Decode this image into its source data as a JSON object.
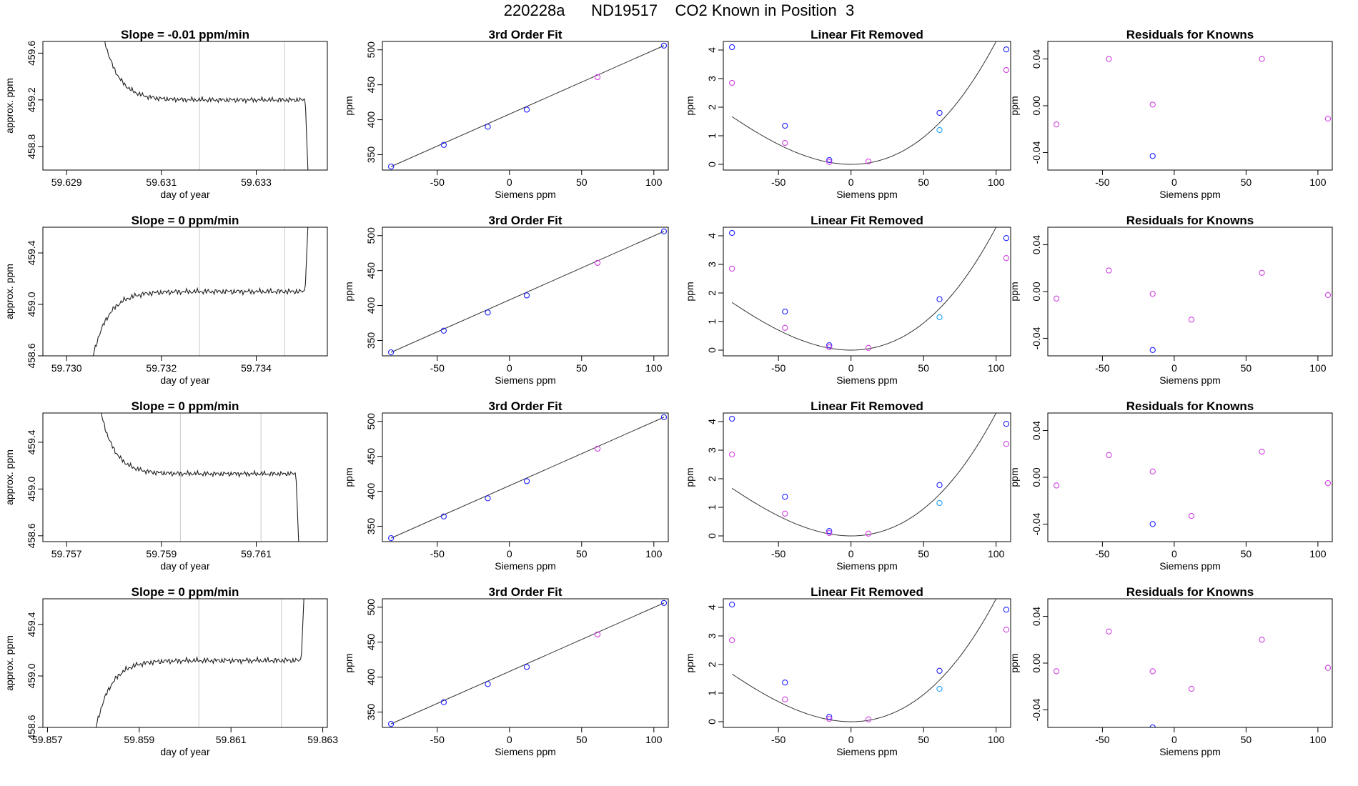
{
  "title": "220228a      ND19517    CO2 Known in Position  3",
  "colors": {
    "frame": "#000000",
    "trace": "#222222",
    "marker_line": "#c8c8c8",
    "blue": "#2020ff",
    "magenta": "#d040e0",
    "cyan": "#20a0ff",
    "fit_line": "#333333"
  },
  "chart_data": [
    {
      "type": "line",
      "title": "Slope =  -0.01  ppm/min",
      "xlabel": "day of year",
      "ylabel": "approx. ppm",
      "xlim": [
        59.6285,
        59.6345
      ],
      "ylim": [
        458.6,
        459.7
      ],
      "xticks": [
        "59.629",
        "59.631",
        "59.633"
      ],
      "xtick_values": [
        59.629,
        59.631,
        59.633
      ],
      "yticks": [
        "458.8",
        "459.2",
        "459.6"
      ],
      "ytick_values": [
        458.8,
        459.2,
        459.6
      ],
      "vlines": [
        59.6318,
        59.6336
      ],
      "trace": {
        "start": 59.6297,
        "end": 59.6341,
        "edge": "high",
        "level": 459.2,
        "tail": [
          459.9,
          458.5
        ]
      }
    },
    {
      "type": "scatter",
      "title": "3rd Order Fit",
      "xlabel": "Siemens ppm",
      "ylabel": "ppm",
      "xlim": [
        -88,
        110
      ],
      "ylim": [
        328,
        512
      ],
      "xticks": [
        "-50",
        "0",
        "50",
        "100"
      ],
      "xtick_values": [
        -50,
        0,
        50,
        100
      ],
      "yticks": [
        "350",
        "400",
        "450",
        "500"
      ],
      "ytick_values": [
        350,
        400,
        450,
        500
      ],
      "points": [
        {
          "x": -82,
          "y": 333,
          "c": "blue"
        },
        {
          "x": -45.5,
          "y": 364,
          "c": "blue"
        },
        {
          "x": -15,
          "y": 390,
          "c": "blue"
        },
        {
          "x": 12,
          "y": 414.5,
          "c": "blue"
        },
        {
          "x": 61,
          "y": 461,
          "c": "magenta"
        },
        {
          "x": 107,
          "y": 506,
          "c": "blue"
        }
      ],
      "line": {
        "from": [
          -82,
          333
        ],
        "to": [
          107,
          506
        ]
      }
    },
    {
      "type": "scatter",
      "title": "Linear Fit Removed",
      "xlabel": "Siemens ppm",
      "ylabel": "ppm",
      "xlim": [
        -88,
        110
      ],
      "ylim": [
        -0.2,
        4.3
      ],
      "xticks": [
        "-50",
        "0",
        "50",
        "100"
      ],
      "xtick_values": [
        -50,
        0,
        50,
        100
      ],
      "yticks": [
        "0",
        "1",
        "2",
        "3",
        "4"
      ],
      "ytick_values": [
        0,
        1,
        2,
        3,
        4
      ],
      "points": [
        {
          "x": -82,
          "y": 4.1,
          "c": "blue"
        },
        {
          "x": -82,
          "y": 2.85,
          "c": "magenta"
        },
        {
          "x": -45.5,
          "y": 1.35,
          "c": "blue"
        },
        {
          "x": -45.5,
          "y": 0.75,
          "c": "magenta"
        },
        {
          "x": -15,
          "y": 0.15,
          "c": "blue"
        },
        {
          "x": -15,
          "y": 0.08,
          "c": "magenta"
        },
        {
          "x": 12,
          "y": 0.1,
          "c": "magenta"
        },
        {
          "x": 61,
          "y": 1.8,
          "c": "blue"
        },
        {
          "x": 61,
          "y": 1.2,
          "c": "cyan"
        },
        {
          "x": 107,
          "y": 4.02,
          "c": "blue"
        },
        {
          "x": 107,
          "y": 3.3,
          "c": "magenta"
        }
      ],
      "curve": {
        "coef": 0.00055,
        "from": -82,
        "to": 107
      }
    },
    {
      "type": "scatter",
      "title": "Residuals for Knowns",
      "xlabel": "Siemens ppm",
      "ylabel": "ppm",
      "xlim": [
        -88,
        110
      ],
      "ylim": [
        -0.055,
        0.055
      ],
      "xticks": [
        "-50",
        "0",
        "50",
        "100"
      ],
      "xtick_values": [
        -50,
        0,
        50,
        100
      ],
      "yticks": [
        "-0.04",
        "0.00",
        "0.04"
      ],
      "ytick_values": [
        -0.04,
        0.0,
        0.04
      ],
      "points": [
        {
          "x": -82,
          "y": -0.016,
          "c": "magenta"
        },
        {
          "x": -45.5,
          "y": 0.04,
          "c": "magenta"
        },
        {
          "x": -15,
          "y": 0.001,
          "c": "magenta"
        },
        {
          "x": -15,
          "y": -0.043,
          "c": "blue"
        },
        {
          "x": 61,
          "y": 0.04,
          "c": "magenta"
        },
        {
          "x": 107,
          "y": -0.011,
          "c": "magenta"
        }
      ]
    },
    {
      "type": "line",
      "title": "Slope =  0  ppm/min",
      "xlabel": "day of year",
      "ylabel": "approx. ppm",
      "xlim": [
        59.7295,
        59.7355
      ],
      "ylim": [
        458.6,
        459.6
      ],
      "xticks": [
        "59.730",
        "59.732",
        "59.734"
      ],
      "xtick_values": [
        59.73,
        59.732,
        59.734
      ],
      "yticks": [
        "458.6",
        "459.0",
        "459.4"
      ],
      "ytick_values": [
        458.6,
        459.0,
        459.4
      ],
      "vlines": [
        59.7328,
        59.7346
      ],
      "trace": {
        "start": 59.7305,
        "end": 59.7351,
        "edge": "low",
        "level": 459.1,
        "tail": [
          458.5,
          459.7
        ]
      }
    },
    {
      "type": "scatter",
      "title": "3rd Order Fit",
      "xlabel": "Siemens ppm",
      "ylabel": "ppm",
      "xlim": [
        -88,
        110
      ],
      "ylim": [
        328,
        512
      ],
      "xticks": [
        "-50",
        "0",
        "50",
        "100"
      ],
      "xtick_values": [
        -50,
        0,
        50,
        100
      ],
      "yticks": [
        "350",
        "400",
        "450",
        "500"
      ],
      "ytick_values": [
        350,
        400,
        450,
        500
      ],
      "points": [
        {
          "x": -82,
          "y": 333,
          "c": "blue"
        },
        {
          "x": -45.5,
          "y": 364,
          "c": "blue"
        },
        {
          "x": -15,
          "y": 390,
          "c": "blue"
        },
        {
          "x": 12,
          "y": 414.5,
          "c": "blue"
        },
        {
          "x": 61,
          "y": 461,
          "c": "magenta"
        },
        {
          "x": 107,
          "y": 506,
          "c": "blue"
        }
      ],
      "line": {
        "from": [
          -82,
          333
        ],
        "to": [
          107,
          506
        ]
      }
    },
    {
      "type": "scatter",
      "title": "Linear Fit Removed",
      "xlabel": "Siemens ppm",
      "ylabel": "ppm",
      "xlim": [
        -88,
        110
      ],
      "ylim": [
        -0.2,
        4.3
      ],
      "xticks": [
        "-50",
        "0",
        "50",
        "100"
      ],
      "xtick_values": [
        -50,
        0,
        50,
        100
      ],
      "yticks": [
        "0",
        "1",
        "2",
        "3",
        "4"
      ],
      "ytick_values": [
        0,
        1,
        2,
        3,
        4
      ],
      "points": [
        {
          "x": -82,
          "y": 4.1,
          "c": "blue"
        },
        {
          "x": -82,
          "y": 2.85,
          "c": "magenta"
        },
        {
          "x": -45.5,
          "y": 1.35,
          "c": "blue"
        },
        {
          "x": -45.5,
          "y": 0.78,
          "c": "magenta"
        },
        {
          "x": -15,
          "y": 0.17,
          "c": "blue"
        },
        {
          "x": -15,
          "y": 0.1,
          "c": "magenta"
        },
        {
          "x": 12,
          "y": 0.08,
          "c": "magenta"
        },
        {
          "x": 61,
          "y": 1.78,
          "c": "blue"
        },
        {
          "x": 61,
          "y": 1.15,
          "c": "cyan"
        },
        {
          "x": 107,
          "y": 3.92,
          "c": "blue"
        },
        {
          "x": 107,
          "y": 3.22,
          "c": "magenta"
        }
      ],
      "curve": {
        "coef": 0.00055,
        "from": -82,
        "to": 107
      }
    },
    {
      "type": "scatter",
      "title": "Residuals for Knowns",
      "xlabel": "Siemens ppm",
      "ylabel": "ppm",
      "xlim": [
        -88,
        110
      ],
      "ylim": [
        -0.055,
        0.055
      ],
      "xticks": [
        "-50",
        "0",
        "50",
        "100"
      ],
      "xtick_values": [
        -50,
        0,
        50,
        100
      ],
      "yticks": [
        "-0.04",
        "0.00",
        "0.04"
      ],
      "ytick_values": [
        -0.04,
        0.0,
        0.04
      ],
      "points": [
        {
          "x": -82,
          "y": -0.006,
          "c": "magenta"
        },
        {
          "x": -45.5,
          "y": 0.018,
          "c": "magenta"
        },
        {
          "x": -15,
          "y": -0.002,
          "c": "magenta"
        },
        {
          "x": -15,
          "y": -0.05,
          "c": "blue"
        },
        {
          "x": 12,
          "y": -0.024,
          "c": "magenta"
        },
        {
          "x": 61,
          "y": 0.016,
          "c": "magenta"
        },
        {
          "x": 107,
          "y": -0.003,
          "c": "magenta"
        }
      ]
    },
    {
      "type": "line",
      "title": "Slope =  0  ppm/min",
      "xlabel": "day of year",
      "ylabel": "approx. ppm",
      "xlim": [
        59.7565,
        59.7625
      ],
      "ylim": [
        458.55,
        459.65
      ],
      "xticks": [
        "59.757",
        "59.759",
        "59.761"
      ],
      "xtick_values": [
        59.757,
        59.759,
        59.761
      ],
      "yticks": [
        "458.6",
        "459.0",
        "459.4"
      ],
      "ytick_values": [
        458.6,
        459.0,
        459.4
      ],
      "vlines": [
        59.7594,
        59.7611
      ],
      "trace": {
        "start": 59.7577,
        "end": 59.7619,
        "edge": "high",
        "level": 459.13,
        "tail": [
          459.7,
          458.5
        ]
      }
    },
    {
      "type": "scatter",
      "title": "3rd Order Fit",
      "xlabel": "Siemens ppm",
      "ylabel": "ppm",
      "xlim": [
        -88,
        110
      ],
      "ylim": [
        328,
        512
      ],
      "xticks": [
        "-50",
        "0",
        "50",
        "100"
      ],
      "xtick_values": [
        -50,
        0,
        50,
        100
      ],
      "yticks": [
        "350",
        "400",
        "450",
        "500"
      ],
      "ytick_values": [
        350,
        400,
        450,
        500
      ],
      "points": [
        {
          "x": -82,
          "y": 333,
          "c": "blue"
        },
        {
          "x": -45.5,
          "y": 364,
          "c": "blue"
        },
        {
          "x": -15,
          "y": 390,
          "c": "blue"
        },
        {
          "x": 12,
          "y": 414.5,
          "c": "blue"
        },
        {
          "x": 61,
          "y": 461,
          "c": "magenta"
        },
        {
          "x": 107,
          "y": 506,
          "c": "blue"
        }
      ],
      "line": {
        "from": [
          -82,
          333
        ],
        "to": [
          107,
          506
        ]
      }
    },
    {
      "type": "scatter",
      "title": "Linear Fit Removed",
      "xlabel": "Siemens ppm",
      "ylabel": "ppm",
      "xlim": [
        -88,
        110
      ],
      "ylim": [
        -0.2,
        4.3
      ],
      "xticks": [
        "-50",
        "0",
        "50",
        "100"
      ],
      "xtick_values": [
        -50,
        0,
        50,
        100
      ],
      "yticks": [
        "0",
        "1",
        "2",
        "3",
        "4"
      ],
      "ytick_values": [
        0,
        1,
        2,
        3,
        4
      ],
      "points": [
        {
          "x": -82,
          "y": 4.1,
          "c": "blue"
        },
        {
          "x": -82,
          "y": 2.85,
          "c": "magenta"
        },
        {
          "x": -45.5,
          "y": 1.37,
          "c": "blue"
        },
        {
          "x": -45.5,
          "y": 0.78,
          "c": "magenta"
        },
        {
          "x": -15,
          "y": 0.17,
          "c": "blue"
        },
        {
          "x": -15,
          "y": 0.1,
          "c": "magenta"
        },
        {
          "x": 12,
          "y": 0.08,
          "c": "magenta"
        },
        {
          "x": 61,
          "y": 1.78,
          "c": "blue"
        },
        {
          "x": 61,
          "y": 1.15,
          "c": "cyan"
        },
        {
          "x": 107,
          "y": 3.92,
          "c": "blue"
        },
        {
          "x": 107,
          "y": 3.22,
          "c": "magenta"
        }
      ],
      "curve": {
        "coef": 0.00055,
        "from": -82,
        "to": 107
      }
    },
    {
      "type": "scatter",
      "title": "Residuals for Knowns",
      "xlabel": "Siemens ppm",
      "ylabel": "ppm",
      "xlim": [
        -88,
        110
      ],
      "ylim": [
        -0.055,
        0.055
      ],
      "xticks": [
        "-50",
        "0",
        "50",
        "100"
      ],
      "xtick_values": [
        -50,
        0,
        50,
        100
      ],
      "yticks": [
        "-0.04",
        "0.00",
        "0.04"
      ],
      "ytick_values": [
        -0.04,
        0.0,
        0.04
      ],
      "points": [
        {
          "x": -82,
          "y": -0.007,
          "c": "magenta"
        },
        {
          "x": -45.5,
          "y": 0.019,
          "c": "magenta"
        },
        {
          "x": -15,
          "y": 0.005,
          "c": "magenta"
        },
        {
          "x": -15,
          "y": -0.04,
          "c": "blue"
        },
        {
          "x": 12,
          "y": -0.033,
          "c": "magenta"
        },
        {
          "x": 61,
          "y": 0.022,
          "c": "magenta"
        },
        {
          "x": 107,
          "y": -0.005,
          "c": "magenta"
        }
      ]
    },
    {
      "type": "line",
      "title": "Slope =  0  ppm/min",
      "xlabel": "day of year",
      "ylabel": "approx. ppm",
      "xlim": [
        59.8569,
        59.8631
      ],
      "ylim": [
        458.6,
        459.6
      ],
      "xticks": [
        "59.857",
        "59.859",
        "59.861",
        "59.863"
      ],
      "xtick_values": [
        59.857,
        59.859,
        59.861,
        59.863
      ],
      "yticks": [
        "458.6",
        "459.0",
        "459.4"
      ],
      "ytick_values": [
        458.6,
        459.0,
        459.4
      ],
      "vlines": [
        59.8603,
        59.8621
      ],
      "trace": {
        "start": 59.858,
        "end": 59.8626,
        "edge": "low",
        "level": 459.12,
        "tail": [
          458.5,
          459.7
        ]
      }
    },
    {
      "type": "scatter",
      "title": "3rd Order Fit",
      "xlabel": "Siemens ppm",
      "ylabel": "ppm",
      "xlim": [
        -88,
        110
      ],
      "ylim": [
        328,
        512
      ],
      "xticks": [
        "-50",
        "0",
        "50",
        "100"
      ],
      "xtick_values": [
        -50,
        0,
        50,
        100
      ],
      "yticks": [
        "350",
        "400",
        "450",
        "500"
      ],
      "ytick_values": [
        350,
        400,
        450,
        500
      ],
      "points": [
        {
          "x": -82,
          "y": 333,
          "c": "blue"
        },
        {
          "x": -45.5,
          "y": 364,
          "c": "blue"
        },
        {
          "x": -15,
          "y": 390,
          "c": "blue"
        },
        {
          "x": 12,
          "y": 414.5,
          "c": "blue"
        },
        {
          "x": 61,
          "y": 461,
          "c": "magenta"
        },
        {
          "x": 107,
          "y": 506,
          "c": "blue"
        }
      ],
      "line": {
        "from": [
          -82,
          333
        ],
        "to": [
          107,
          506
        ]
      }
    },
    {
      "type": "scatter",
      "title": "Linear Fit Removed",
      "xlabel": "Siemens ppm",
      "ylabel": "ppm",
      "xlim": [
        -88,
        110
      ],
      "ylim": [
        -0.2,
        4.3
      ],
      "xticks": [
        "-50",
        "0",
        "50",
        "100"
      ],
      "xtick_values": [
        -50,
        0,
        50,
        100
      ],
      "yticks": [
        "0",
        "1",
        "2",
        "3",
        "4"
      ],
      "ytick_values": [
        0,
        1,
        2,
        3,
        4
      ],
      "points": [
        {
          "x": -82,
          "y": 4.1,
          "c": "blue"
        },
        {
          "x": -82,
          "y": 2.85,
          "c": "magenta"
        },
        {
          "x": -45.5,
          "y": 1.37,
          "c": "blue"
        },
        {
          "x": -45.5,
          "y": 0.78,
          "c": "magenta"
        },
        {
          "x": -15,
          "y": 0.17,
          "c": "blue"
        },
        {
          "x": -15,
          "y": 0.1,
          "c": "magenta"
        },
        {
          "x": 12,
          "y": 0.08,
          "c": "magenta"
        },
        {
          "x": 61,
          "y": 1.78,
          "c": "blue"
        },
        {
          "x": 61,
          "y": 1.15,
          "c": "cyan"
        },
        {
          "x": 107,
          "y": 3.92,
          "c": "blue"
        },
        {
          "x": 107,
          "y": 3.22,
          "c": "magenta"
        }
      ],
      "curve": {
        "coef": 0.00055,
        "from": -82,
        "to": 107
      }
    },
    {
      "type": "scatter",
      "title": "Residuals for Knowns",
      "xlabel": "Siemens ppm",
      "ylabel": "ppm",
      "xlim": [
        -88,
        110
      ],
      "ylim": [
        -0.055,
        0.055
      ],
      "xticks": [
        "-50",
        "0",
        "50",
        "100"
      ],
      "xtick_values": [
        -50,
        0,
        50,
        100
      ],
      "yticks": [
        "-0.04",
        "0.00",
        "0.04"
      ],
      "ytick_values": [
        -0.04,
        0.0,
        0.04
      ],
      "points": [
        {
          "x": -82,
          "y": -0.007,
          "c": "magenta"
        },
        {
          "x": -45.5,
          "y": 0.027,
          "c": "magenta"
        },
        {
          "x": -15,
          "y": -0.007,
          "c": "magenta"
        },
        {
          "x": -15,
          "y": -0.055,
          "c": "blue"
        },
        {
          "x": 12,
          "y": -0.022,
          "c": "magenta"
        },
        {
          "x": 61,
          "y": 0.02,
          "c": "magenta"
        },
        {
          "x": 107,
          "y": -0.004,
          "c": "magenta"
        }
      ]
    }
  ]
}
